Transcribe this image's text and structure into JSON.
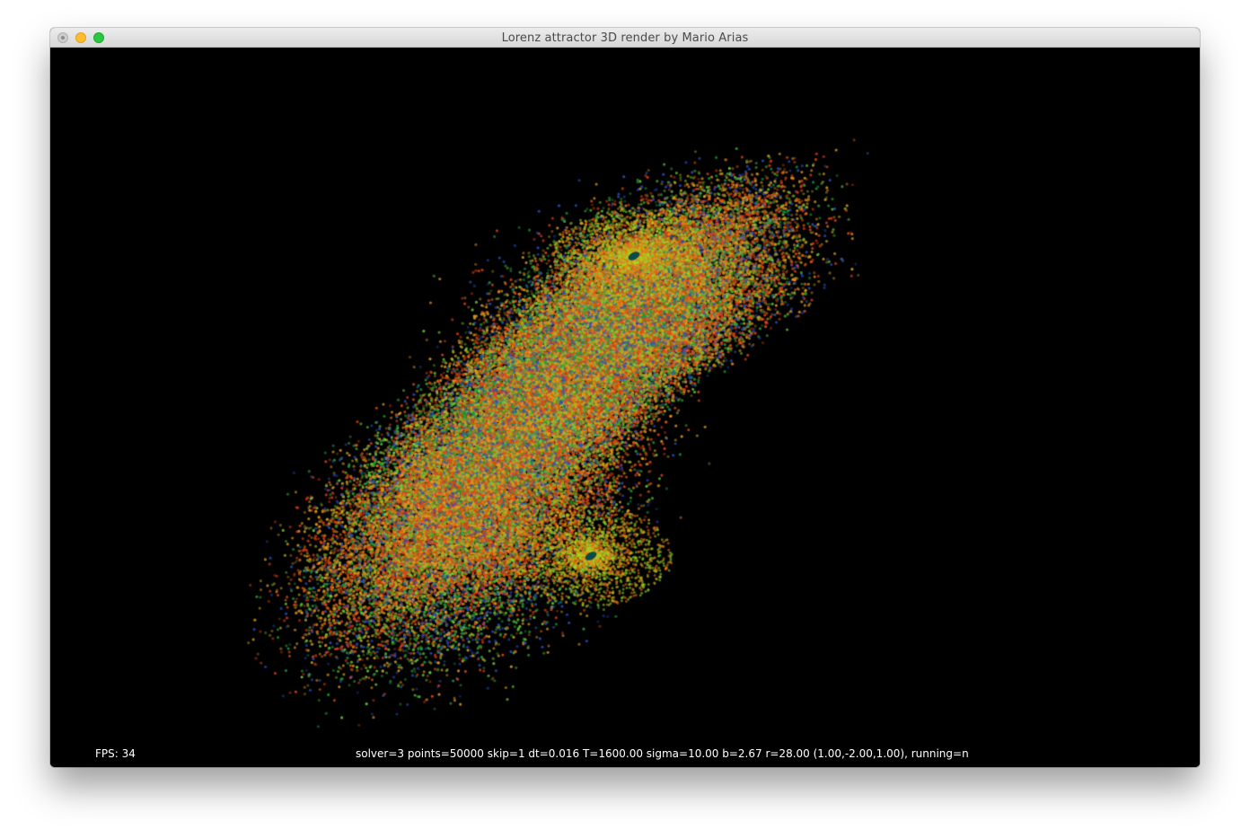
{
  "window": {
    "title": "Lorenz attractor 3D render by Mario Arias"
  },
  "hud": {
    "fps_label": "FPS: 34",
    "params_line": "solver=3 points=50000  skip=1  dt=0.016  T=1600.00  sigma=10.00  b=2.67  r=28.00  (1.00,-2.00,1.00), running=n"
  },
  "simulation": {
    "solver": 3,
    "points": 50000,
    "skip": 1,
    "dt": 0.016,
    "T": 1600.0,
    "sigma": 10.0,
    "b": 2.67,
    "r": 28.0,
    "initial": [
      1.0,
      -2.0,
      1.0
    ],
    "running": "n"
  },
  "colors": {
    "background": "#000000",
    "point_palette": [
      "#2a4fb0",
      "#1d9a3a",
      "#6ad13a",
      "#e0a020",
      "#e04a10"
    ]
  }
}
